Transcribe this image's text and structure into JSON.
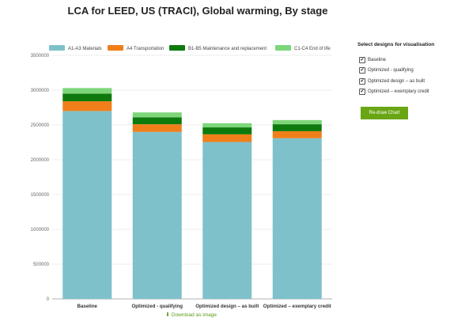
{
  "page": {
    "title": "LCA for LEED, US (TRACI), Global warming, By stage",
    "download_label": "Download as image"
  },
  "sidebar": {
    "title": "Select designs for visualisation",
    "options": [
      {
        "label": "Baseline",
        "checked": true
      },
      {
        "label": "Optimized - qualifying",
        "checked": true
      },
      {
        "label": "Optimized design – as built",
        "checked": true
      },
      {
        "label": "Optimized – exemplary credit",
        "checked": true
      }
    ],
    "button_label": "Re-draw Chart",
    "button_color": "#6aa514"
  },
  "icons": {
    "download": "download-icon",
    "checkbox": "checkmark-icon"
  },
  "chart_data": {
    "type": "bar",
    "stacked": true,
    "title": "LCA for LEED, US (TRACI), Global warming, By stage",
    "categories": [
      "Baseline",
      "Optimized - qualifying",
      "Optimized design – as built",
      "Optimized – exemplary credit"
    ],
    "series": [
      {
        "name": "A1-A3 Materials",
        "color": "#7fc1cb",
        "values": [
          2700000,
          2400000,
          2255000,
          2310000
        ]
      },
      {
        "name": "A4 Transportation",
        "color": "#f07f1a",
        "values": [
          140000,
          110000,
          110000,
          100000
        ]
      },
      {
        "name": "B1-B5 Maintenance and replacement",
        "color": "#0e7a0e",
        "values": [
          110000,
          100000,
          100000,
          100000
        ]
      },
      {
        "name": "C1-C4 End of life",
        "color": "#7dd67a",
        "values": [
          80000,
          70000,
          60000,
          60000
        ]
      }
    ],
    "ylim": [
      0,
      3500000
    ],
    "yticks": [
      "0",
      "500000",
      "1000000",
      "1500000",
      "2000000",
      "2500000",
      "3000000",
      "3500000"
    ],
    "legend_position": "top",
    "grid": true
  }
}
